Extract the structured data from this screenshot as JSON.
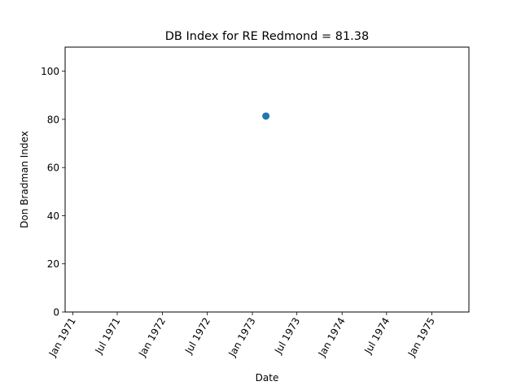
{
  "chart_data": {
    "type": "scatter",
    "title": "DB Index for RE Redmond = 81.38",
    "xlabel": "Date",
    "ylabel": "Don Bradman Index",
    "x_type": "date",
    "xlim": [
      "1970-12-01",
      "1975-06-01"
    ],
    "ylim": [
      0,
      110
    ],
    "xticks": [
      {
        "date": "1971-01-01",
        "label": "Jan 1971"
      },
      {
        "date": "1971-07-01",
        "label": "Jul 1971"
      },
      {
        "date": "1972-01-01",
        "label": "Jan 1972"
      },
      {
        "date": "1972-07-01",
        "label": "Jul 1972"
      },
      {
        "date": "1973-01-01",
        "label": "Jan 1973"
      },
      {
        "date": "1973-07-01",
        "label": "Jul 1973"
      },
      {
        "date": "1974-01-01",
        "label": "Jan 1974"
      },
      {
        "date": "1974-07-01",
        "label": "Jul 1974"
      },
      {
        "date": "1975-01-01",
        "label": "Jan 1975"
      }
    ],
    "yticks": [
      0,
      20,
      40,
      60,
      80,
      100
    ],
    "series": [
      {
        "color": "#1f77b4",
        "points": [
          {
            "x": "1973-02-25",
            "y": 81.38
          }
        ]
      }
    ],
    "grid": false,
    "legend": "none"
  }
}
